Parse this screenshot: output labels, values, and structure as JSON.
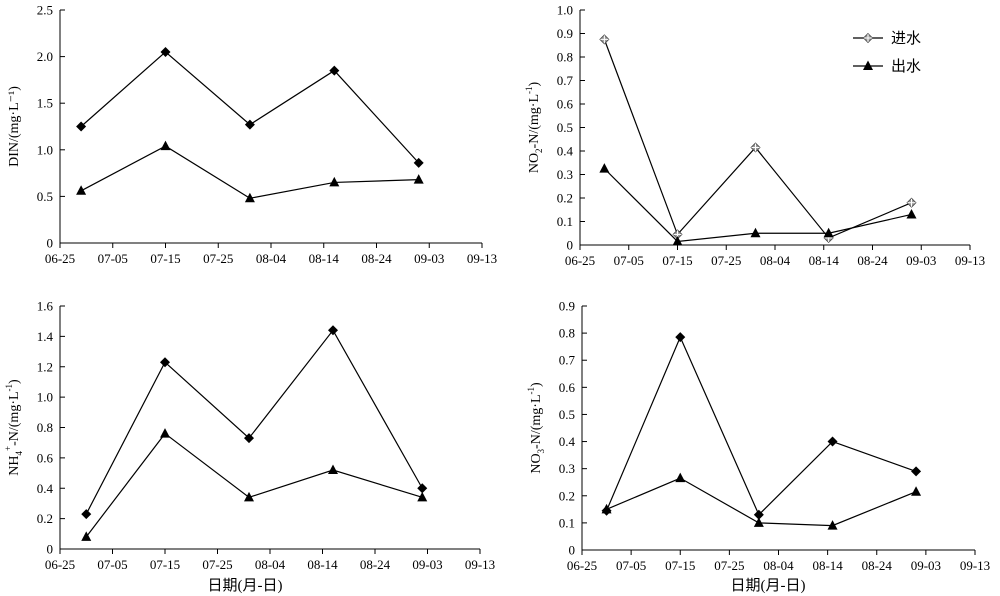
{
  "xlabel": "日期(月-日)",
  "chart_data": [
    {
      "type": "line",
      "panel": "top-left",
      "ylabel": "DIN/(mg·L⁻¹)",
      "x_ticks": [
        "06-25",
        "07-05",
        "07-15",
        "07-25",
        "08-04",
        "08-14",
        "08-24",
        "09-03",
        "09-13"
      ],
      "y_ticks": [
        "0",
        "0.5",
        "1.0",
        "1.5",
        "2.0",
        "2.5"
      ],
      "ylim": [
        0,
        2.5
      ],
      "grid": false,
      "series": [
        {
          "marker": "diamond",
          "points": [
            [
              "06-29",
              1.25
            ],
            [
              "07-15",
              2.05
            ],
            [
              "07-31",
              1.27
            ],
            [
              "08-16",
              1.85
            ],
            [
              "09-01",
              0.86
            ]
          ]
        },
        {
          "marker": "triangle",
          "points": [
            [
              "06-29",
              0.56
            ],
            [
              "07-15",
              1.04
            ],
            [
              "07-31",
              0.48
            ],
            [
              "08-16",
              0.65
            ],
            [
              "09-01",
              0.68
            ]
          ]
        }
      ]
    },
    {
      "type": "line",
      "panel": "top-right",
      "ylabel_parts": [
        "NO",
        "2",
        "-N/(mg·L",
        "-1",
        ")"
      ],
      "x_ticks": [
        "06-25",
        "07-05",
        "07-15",
        "07-25",
        "08-04",
        "08-14",
        "08-24",
        "09-03",
        "09-13"
      ],
      "y_ticks": [
        "0",
        "0.1",
        "0.2",
        "0.3",
        "0.4",
        "0.5",
        "0.6",
        "0.7",
        "0.8",
        "0.9",
        "1.0"
      ],
      "ylim": [
        0,
        1.0
      ],
      "grid": false,
      "legend": {
        "position": "top-right",
        "entries": [
          {
            "name": "进水",
            "marker": "star-diamond"
          },
          {
            "name": "出水",
            "marker": "triangle"
          }
        ]
      },
      "series": [
        {
          "name": "进水",
          "marker": "star-diamond",
          "points": [
            [
              "06-30",
              0.875
            ],
            [
              "07-15",
              0.045
            ],
            [
              "07-31",
              0.415
            ],
            [
              "08-15",
              0.03
            ],
            [
              "09-01",
              0.18
            ]
          ]
        },
        {
          "name": "出水",
          "marker": "triangle",
          "points": [
            [
              "06-30",
              0.325
            ],
            [
              "07-15",
              0.015
            ],
            [
              "07-31",
              0.05
            ],
            [
              "08-15",
              0.05
            ],
            [
              "09-01",
              0.13
            ]
          ]
        }
      ]
    },
    {
      "type": "line",
      "panel": "bottom-left",
      "ylabel_parts": [
        "NH",
        "4",
        "+",
        "-N/(mg·L",
        "-1",
        ")"
      ],
      "x_ticks": [
        "06-25",
        "07-05",
        "07-15",
        "07-25",
        "08-04",
        "08-14",
        "08-24",
        "09-03",
        "09-13"
      ],
      "y_ticks": [
        "0",
        "0.2",
        "0.4",
        "0.6",
        "0.8",
        "1.0",
        "1.2",
        "1.4",
        "1.6"
      ],
      "ylim": [
        0,
        1.6
      ],
      "grid": false,
      "series": [
        {
          "marker": "diamond",
          "points": [
            [
              "06-30",
              0.23
            ],
            [
              "07-15",
              1.23
            ],
            [
              "07-31",
              0.73
            ],
            [
              "08-16",
              1.44
            ],
            [
              "09-02",
              0.4
            ]
          ]
        },
        {
          "marker": "triangle",
          "points": [
            [
              "06-30",
              0.08
            ],
            [
              "07-15",
              0.76
            ],
            [
              "07-31",
              0.34
            ],
            [
              "08-16",
              0.52
            ],
            [
              "09-02",
              0.34
            ]
          ]
        }
      ]
    },
    {
      "type": "line",
      "panel": "bottom-right",
      "ylabel_parts": [
        "NO",
        "3",
        "-N/(mg·L",
        "-1",
        ")"
      ],
      "x_ticks": [
        "06-25",
        "07-05",
        "07-15",
        "07-25",
        "08-04",
        "08-14",
        "08-24",
        "09-03",
        "09-13"
      ],
      "y_ticks": [
        "0",
        "0.1",
        "0.2",
        "0.3",
        "0.4",
        "0.5",
        "0.6",
        "0.7",
        "0.8",
        "0.9"
      ],
      "ylim": [
        0,
        0.9
      ],
      "grid": false,
      "series": [
        {
          "marker": "diamond",
          "points": [
            [
              "06-30",
              0.145
            ],
            [
              "07-15",
              0.785
            ],
            [
              "07-31",
              0.13
            ],
            [
              "08-15",
              0.4
            ],
            [
              "09-01",
              0.29
            ]
          ]
        },
        {
          "marker": "triangle",
          "points": [
            [
              "06-30",
              0.15
            ],
            [
              "07-15",
              0.265
            ],
            [
              "07-31",
              0.1
            ],
            [
              "08-15",
              0.09
            ],
            [
              "09-01",
              0.215
            ]
          ]
        }
      ]
    }
  ]
}
